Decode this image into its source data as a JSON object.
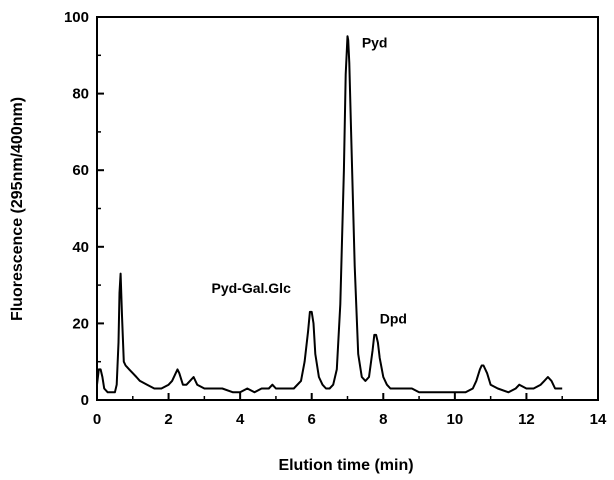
{
  "chart_data": {
    "type": "line",
    "title": "",
    "xlabel": "Elution time (min)",
    "ylabel": "Fluorescence (295nm/400nm)",
    "xlim": [
      0,
      14
    ],
    "ylim": [
      0,
      100
    ],
    "xticks": [
      0,
      2,
      4,
      6,
      8,
      10,
      12,
      14
    ],
    "yticks": [
      0,
      20,
      40,
      60,
      80,
      100
    ],
    "grid": false,
    "line_color": "#000000",
    "series": [
      {
        "x": [
          0.0,
          0.05,
          0.1,
          0.15,
          0.2,
          0.3,
          0.4,
          0.5,
          0.55,
          0.6,
          0.63,
          0.66,
          0.7,
          0.75,
          0.8,
          0.9,
          1.0,
          1.1,
          1.2,
          1.4,
          1.6,
          1.8,
          2.0,
          2.1,
          2.2,
          2.25,
          2.3,
          2.4,
          2.5,
          2.6,
          2.7,
          2.8,
          3.0,
          3.2,
          3.5,
          3.8,
          4.0,
          4.2,
          4.4,
          4.6,
          4.8,
          4.9,
          5.0,
          5.2,
          5.5,
          5.7,
          5.8,
          5.9,
          5.95,
          6.0,
          6.05,
          6.1,
          6.2,
          6.3,
          6.4,
          6.5,
          6.6,
          6.7,
          6.8,
          6.9,
          6.95,
          7.0,
          7.02,
          7.05,
          7.1,
          7.2,
          7.3,
          7.4,
          7.5,
          7.6,
          7.7,
          7.75,
          7.8,
          7.85,
          7.9,
          8.0,
          8.1,
          8.2,
          8.4,
          8.6,
          8.8,
          9.0,
          9.5,
          10.0,
          10.3,
          10.5,
          10.6,
          10.7,
          10.75,
          10.8,
          10.9,
          11.0,
          11.2,
          11.5,
          11.7,
          11.8,
          12.0,
          12.2,
          12.4,
          12.5,
          12.6,
          12.7,
          12.8,
          13.0
        ],
        "values": [
          4,
          8,
          8,
          6,
          3,
          2,
          2,
          2,
          4,
          15,
          28,
          33,
          22,
          10,
          9,
          8,
          7,
          6,
          5,
          4,
          3,
          3,
          4,
          5,
          7,
          8,
          7,
          4,
          4,
          5,
          6,
          4,
          3,
          3,
          3,
          2,
          2,
          3,
          2,
          3,
          3,
          4,
          3,
          3,
          3,
          5,
          10,
          18,
          23,
          23,
          20,
          12,
          6,
          4,
          3,
          3,
          4,
          8,
          25,
          60,
          85,
          95,
          94,
          88,
          70,
          35,
          12,
          6,
          5,
          6,
          13,
          17,
          17,
          15,
          11,
          6,
          4,
          3,
          3,
          3,
          3,
          2,
          2,
          2,
          2,
          3,
          5,
          8,
          9,
          9,
          7,
          4,
          3,
          2,
          3,
          4,
          3,
          3,
          4,
          5,
          6,
          5,
          3,
          3
        ]
      }
    ],
    "annotations": [
      {
        "text": "Pyd",
        "x": 7.4,
        "y": 92
      },
      {
        "text": "Pyd-Gal.Glc",
        "x": 3.2,
        "y": 28
      },
      {
        "text": "Dpd",
        "x": 7.9,
        "y": 20
      }
    ]
  }
}
